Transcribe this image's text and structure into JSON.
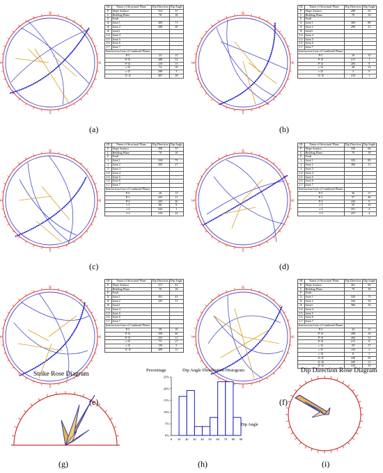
{
  "table_header": {
    "id": "ID",
    "name": "Name of Structural Plane",
    "dip_dir": "Dip Direction",
    "dip_ang": "Dip Angle"
  },
  "inter_header": "Intersection Line of Combined Planes",
  "compass": {
    "n": "N",
    "e": "E",
    "s": "S",
    "w": "W"
  },
  "panels": [
    {
      "label": "(a)",
      "planes": [
        [
          "P",
          "Slope Surface",
          "314",
          "55"
        ],
        [
          "C",
          "Bedding Plane",
          "70",
          "18"
        ],
        [
          "F",
          "Fault",
          "",
          ""
        ],
        [
          "①",
          "Joint 1",
          "300",
          "71"
        ],
        [
          "②",
          "Joint 2",
          "288",
          "28"
        ],
        [
          "③",
          "Joint3",
          "",
          ""
        ],
        [
          "L4",
          "Joint 4",
          "",
          ""
        ],
        [
          "L5",
          "Joint 5",
          "",
          ""
        ],
        [
          "L6",
          "Joint 6",
          "",
          ""
        ],
        [
          "L7",
          "Joint 7",
          "",
          ""
        ]
      ],
      "lines": [
        [
          "P-C",
          "23",
          "15"
        ],
        [
          "P-①",
          "288",
          "52"
        ],
        [
          "P-②",
          "219",
          "15"
        ],
        [
          "c-①",
          "74",
          "18"
        ],
        [
          "c-②",
          "298",
          "3"
        ],
        [
          "①-②",
          "287",
          "28"
        ]
      ]
    },
    {
      "label": "(b)",
      "planes": [
        [
          "P",
          "Slope Surface",
          "298",
          "52"
        ],
        [
          "C",
          "Bedding Plane",
          "70",
          "18"
        ],
        [
          "F",
          "Fault",
          "",
          ""
        ],
        [
          "①",
          "Joint 1",
          "300",
          "88"
        ],
        [
          "②",
          "Joint 2",
          "298",
          "23"
        ],
        [
          "③",
          "Joint3",
          "",
          ""
        ],
        [
          "L4",
          "Joint 4",
          "",
          ""
        ],
        [
          "L5",
          "Joint 5",
          "",
          ""
        ],
        [
          "L6",
          "Joint 6",
          "",
          ""
        ],
        [
          "L7",
          "Joint 7",
          "",
          ""
        ]
      ],
      "lines": [
        [
          "P-C",
          "19",
          "15"
        ],
        [
          "P-①",
          "211",
          "1"
        ],
        [
          "P-②",
          "206",
          "8"
        ],
        [
          "c-①",
          "28",
          "13"
        ],
        [
          "c-②",
          "2",
          "9"
        ],
        [
          "①-②",
          "210",
          "1"
        ]
      ]
    },
    {
      "label": "(c)",
      "planes": [
        [
          "P",
          "Slope Surface",
          "300",
          "55"
        ],
        [
          "C",
          "Bedding Plane",
          "70",
          "18"
        ],
        [
          "F",
          "Fault",
          "",
          ""
        ],
        [
          "1",
          "Joint 1",
          "318",
          "75"
        ],
        [
          "2",
          "Joint 2",
          "295",
          "27"
        ],
        [
          "3",
          "Joint 3",
          "",
          ""
        ],
        [
          "L4",
          "Joint 4",
          "",
          ""
        ],
        [
          "L5",
          "Joint 5",
          "",
          ""
        ],
        [
          "L6",
          "Joint 6",
          "",
          ""
        ],
        [
          "L7",
          "Joint 7",
          "",
          ""
        ]
      ],
      "lines": [
        [
          "P-C",
          "26",
          "13"
        ],
        [
          "P-1",
          "225",
          "11"
        ],
        [
          "P-2",
          "235",
          "26"
        ],
        [
          "c-1",
          "86",
          "8"
        ],
        [
          "c-2",
          "343",
          "1"
        ],
        [
          "1-2",
          "219",
          "24"
        ]
      ]
    },
    {
      "label": "(d)",
      "planes": [
        [
          "P",
          "Slope Surface",
          "330",
          "68"
        ],
        [
          "C",
          "Bedding Plane",
          "70",
          "18"
        ],
        [
          "F",
          "Fault",
          "",
          ""
        ],
        [
          "1",
          "Joint 1",
          "325",
          "85"
        ],
        [
          "2",
          "Joint 2",
          "300",
          "11"
        ],
        [
          "3",
          "Joint 3",
          "",
          ""
        ],
        [
          "L4",
          "Joint 4",
          "",
          ""
        ],
        [
          "L5",
          "Joint 5",
          "",
          ""
        ],
        [
          "L6",
          "Joint 6",
          "",
          ""
        ],
        [
          "L7",
          "Joint 7",
          "",
          ""
        ]
      ],
      "lines": [
        [
          "P-C",
          "36",
          "17"
        ],
        [
          "P-1",
          "57",
          "46"
        ],
        [
          "P-2",
          "245",
          "9"
        ],
        [
          "c-1",
          "55",
          "16"
        ],
        [
          "c-2",
          "351",
          "4"
        ],
        [
          "1-2",
          "237",
          "4"
        ]
      ]
    },
    {
      "label": "(e)",
      "planes": [
        [
          "P",
          "Slope Surface",
          "317",
          "62"
        ],
        [
          "C",
          "Bedding Plane",
          "70",
          "18"
        ],
        [
          "F",
          "Fault",
          "",
          ""
        ],
        [
          "①",
          "Joint 1",
          "291",
          "41"
        ],
        [
          "②",
          "Joint 2",
          "225",
          "11"
        ],
        [
          "③",
          "Joint3",
          "",
          ""
        ],
        [
          "L4",
          "Joint 4",
          "",
          ""
        ],
        [
          "L5",
          "Joint 5",
          "",
          ""
        ],
        [
          "L6",
          "Joint 6",
          "",
          ""
        ],
        [
          "L7",
          "Joint 7",
          "",
          ""
        ]
      ],
      "lines": [
        [
          "P-C",
          "39",
          "16"
        ],
        [
          "P-①",
          "358",
          "60"
        ],
        [
          "P-②",
          "233",
          "11"
        ],
        [
          "c-①",
          "73",
          "17"
        ],
        [
          "c-②",
          "139",
          "5"
        ],
        [
          "①-②",
          "209",
          "11"
        ]
      ]
    },
    {
      "label": "(f)",
      "planes": [
        [
          "P",
          "Slope Surface",
          "301",
          "60"
        ],
        [
          "C",
          "Bedding Plane",
          "70",
          "18"
        ],
        [
          "F",
          "Fault",
          "",
          ""
        ],
        [
          "①",
          "Joint 1",
          "320",
          "73"
        ],
        [
          "②",
          "Joint 2",
          "242",
          "54"
        ],
        [
          "③",
          "Joint3",
          "300",
          "19"
        ],
        [
          "L4",
          "Joint 4",
          "",
          ""
        ],
        [
          "L5",
          "Joint 5",
          "",
          ""
        ],
        [
          "L6",
          "Joint 6",
          "",
          ""
        ],
        [
          "L7",
          "Joint 7",
          "",
          ""
        ]
      ],
      "lines": [
        [
          "P-C",
          "32",
          "13"
        ],
        [
          "P-①",
          "298",
          "16"
        ],
        [
          "P-②",
          "264",
          "52"
        ],
        [
          "P-③",
          "211",
          "8"
        ],
        [
          "c-①",
          "59",
          "17"
        ],
        [
          "c-②",
          "154",
          "2"
        ],
        [
          "c-③",
          "8",
          "3"
        ],
        [
          "①-②",
          "220",
          "50"
        ],
        [
          "①-③",
          "245",
          "11"
        ],
        [
          "②-③",
          "310",
          "19"
        ]
      ]
    }
  ],
  "bottom": {
    "g": {
      "label": "(g)",
      "title": "Strike Rose Diagram"
    },
    "h": {
      "label": "(h)",
      "title": "Dip Angle Distribution Histogram",
      "ylabel": "Percentage",
      "xlabel": "Dip Angle",
      "yticks": [
        "0%",
        "5%",
        "10%",
        "15%",
        "20%",
        "25%"
      ],
      "xticks": [
        "0",
        "10",
        "20",
        "30",
        "40",
        "50",
        "60",
        "70",
        "80",
        "90"
      ]
    },
    "i": {
      "label": "(i)",
      "title": "Dip Direction Rose Diagram"
    }
  },
  "chart_data": {
    "type": "bar",
    "title": "Dip Angle Distribution Histogram",
    "xlabel": "Dip Angle",
    "ylabel": "Percentage",
    "x": [
      "0-10",
      "10-20",
      "20-30",
      "30-40",
      "40-50",
      "50-60",
      "60-70",
      "70-80",
      "80-90"
    ],
    "values": [
      0,
      16.7,
      19.2,
      3.8,
      3.8,
      7.7,
      23,
      23,
      7.7
    ],
    "ylim": [
      0,
      25
    ],
    "xlim": [
      0,
      90
    ]
  }
}
